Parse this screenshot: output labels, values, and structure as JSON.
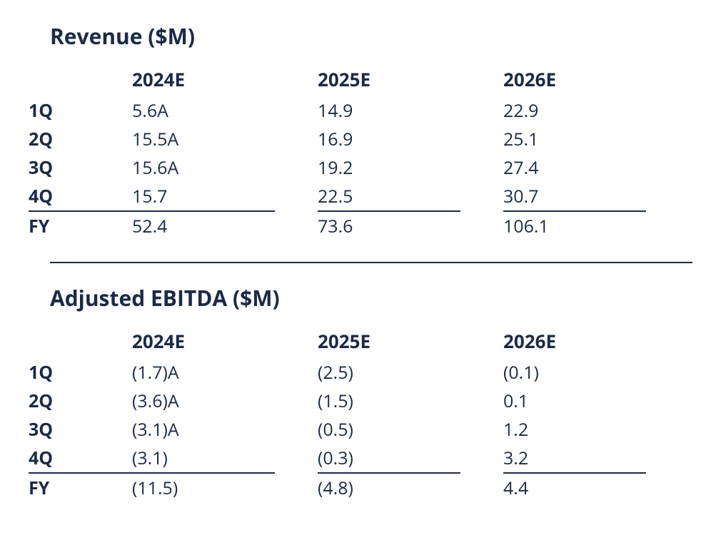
{
  "text_color": "#1a2b4a",
  "background_color": "#ffffff",
  "border_color": "#1a2b4a",
  "revenue": {
    "title": "Revenue ($M)",
    "columns": [
      "2024E",
      "2025E",
      "2026E"
    ],
    "rows": [
      {
        "label": "1Q",
        "values": [
          "5.6A",
          "14.9",
          "22.9"
        ]
      },
      {
        "label": "2Q",
        "values": [
          "15.5A",
          "16.9",
          "25.1"
        ]
      },
      {
        "label": "3Q",
        "values": [
          "15.6A",
          "19.2",
          "27.4"
        ]
      },
      {
        "label": "4Q",
        "values": [
          "15.7",
          "22.5",
          "30.7"
        ]
      }
    ],
    "total": {
      "label": "FY",
      "values": [
        "52.4",
        "73.6",
        "106.1"
      ]
    }
  },
  "ebitda": {
    "title": "Adjusted EBITDA ($M)",
    "columns": [
      "2024E",
      "2025E",
      "2026E"
    ],
    "rows": [
      {
        "label": "1Q",
        "values": [
          "(1.7)A",
          "(2.5)",
          "(0.1)"
        ]
      },
      {
        "label": "2Q",
        "values": [
          "(3.6)A",
          "(1.5)",
          "0.1"
        ]
      },
      {
        "label": "3Q",
        "values": [
          "(3.1)A",
          "(0.5)",
          "1.2"
        ]
      },
      {
        "label": "4Q",
        "values": [
          "(3.1)",
          "(0.3)",
          "3.2"
        ]
      }
    ],
    "total": {
      "label": "FY",
      "values": [
        "(11.5)",
        "(4.8)",
        "4.4"
      ]
    }
  }
}
